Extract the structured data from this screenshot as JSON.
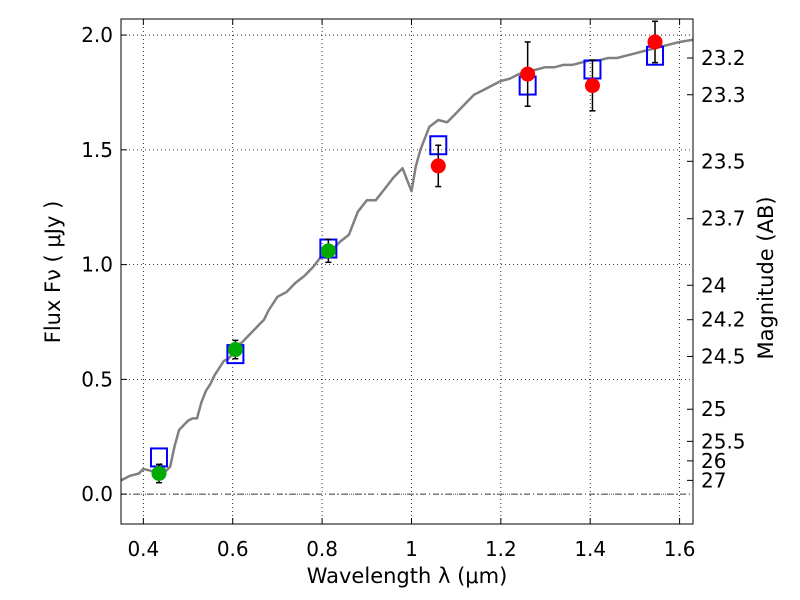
{
  "chart_data": {
    "type": "scatter",
    "xlabel": "Wavelength  λ (μm)",
    "ylabel": "Flux  Fν  ( μJy )",
    "y2label": "Magnitude (AB)",
    "xlim": [
      0.35,
      1.63
    ],
    "ylim": [
      -0.13,
      2.07
    ],
    "grid": true,
    "x_ticks": [
      0.4,
      0.6,
      0.8,
      1.0,
      1.2,
      1.4,
      1.6
    ],
    "x_tick_labels": [
      "0.4",
      "0.6",
      "0.8",
      "1",
      "1.2",
      "1.4",
      "1.6"
    ],
    "y_ticks": [
      0.0,
      0.5,
      1.0,
      1.5,
      2.0
    ],
    "y_tick_labels": [
      "0.0",
      "0.5",
      "1.0",
      "1.5",
      "2.0"
    ],
    "right_ticks": [
      {
        "flux": 1.9,
        "label": "23.2"
      },
      {
        "flux": 1.74,
        "label": "23.3"
      },
      {
        "flux": 1.45,
        "label": "23.5"
      },
      {
        "flux": 1.2,
        "label": "23.7"
      },
      {
        "flux": 0.91,
        "label": "24"
      },
      {
        "flux": 0.76,
        "label": "24.2"
      },
      {
        "flux": 0.6,
        "label": "24.5"
      },
      {
        "flux": 0.37,
        "label": "25"
      },
      {
        "flux": 0.23,
        "label": "25.5"
      },
      {
        "flux": 0.145,
        "label": "26"
      },
      {
        "flux": 0.06,
        "label": "27"
      }
    ],
    "series": [
      {
        "kind": "model-spectrum-line",
        "color": "#808080",
        "x": [
          0.35,
          0.37,
          0.39,
          0.4,
          0.42,
          0.44,
          0.45,
          0.46,
          0.47,
          0.48,
          0.49,
          0.5,
          0.51,
          0.52,
          0.53,
          0.54,
          0.55,
          0.56,
          0.57,
          0.58,
          0.59,
          0.6,
          0.61,
          0.62,
          0.63,
          0.64,
          0.65,
          0.66,
          0.67,
          0.68,
          0.7,
          0.72,
          0.74,
          0.76,
          0.78,
          0.8,
          0.82,
          0.84,
          0.86,
          0.88,
          0.9,
          0.92,
          0.94,
          0.96,
          0.98,
          1.0,
          1.01,
          1.02,
          1.04,
          1.06,
          1.08,
          1.1,
          1.12,
          1.14,
          1.16,
          1.18,
          1.2,
          1.22,
          1.24,
          1.26,
          1.28,
          1.3,
          1.32,
          1.34,
          1.36,
          1.38,
          1.4,
          1.42,
          1.44,
          1.46,
          1.48,
          1.5,
          1.52,
          1.54,
          1.56,
          1.58,
          1.6,
          1.63
        ],
        "y": [
          0.06,
          0.08,
          0.09,
          0.11,
          0.1,
          0.13,
          0.1,
          0.12,
          0.21,
          0.28,
          0.3,
          0.32,
          0.33,
          0.33,
          0.4,
          0.45,
          0.48,
          0.52,
          0.55,
          0.58,
          0.59,
          0.61,
          0.65,
          0.66,
          0.68,
          0.7,
          0.72,
          0.74,
          0.76,
          0.8,
          0.86,
          0.88,
          0.92,
          0.95,
          0.99,
          1.04,
          1.06,
          1.1,
          1.13,
          1.23,
          1.28,
          1.28,
          1.33,
          1.38,
          1.42,
          1.32,
          1.43,
          1.5,
          1.6,
          1.63,
          1.62,
          1.66,
          1.7,
          1.74,
          1.76,
          1.78,
          1.8,
          1.81,
          1.83,
          1.84,
          1.85,
          1.86,
          1.86,
          1.87,
          1.87,
          1.88,
          1.89,
          1.89,
          1.9,
          1.9,
          1.91,
          1.92,
          1.93,
          1.94,
          1.95,
          1.96,
          1.97,
          1.98
        ]
      },
      {
        "kind": "model-photometry-open-squares",
        "color": "#0000ff",
        "x": [
          0.435,
          0.606,
          0.814,
          1.06,
          1.26,
          1.405,
          1.545
        ],
        "y": [
          0.16,
          0.61,
          1.07,
          1.52,
          1.78,
          1.85,
          1.91
        ]
      },
      {
        "kind": "observed-green-points",
        "color": "#00aa00",
        "x": [
          0.435,
          0.606,
          0.814
        ],
        "y": [
          0.09,
          0.63,
          1.06
        ],
        "yerr": [
          0.04,
          0.04,
          0.05
        ]
      },
      {
        "kind": "observed-red-points",
        "color": "#ff0000",
        "x": [
          1.06,
          1.26,
          1.405,
          1.545
        ],
        "y": [
          1.43,
          1.83,
          1.78,
          1.97
        ],
        "yerr": [
          0.09,
          0.14,
          0.11,
          0.09
        ]
      }
    ]
  }
}
